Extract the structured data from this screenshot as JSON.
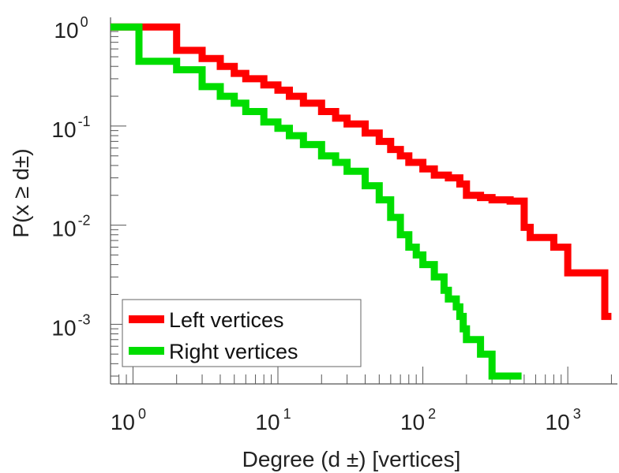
{
  "chart_data": {
    "type": "line",
    "xscale": "log",
    "yscale": "log",
    "xlim": [
      0.7,
      2200
    ],
    "ylim": [
      0.00025,
      1.25
    ],
    "grid": false,
    "legend_position": "bottom-left",
    "xlabel": "Degree (d ±) [vertices]",
    "ylabel": "P(x ≥ d±)",
    "x_ticks": [
      {
        "base": "10",
        "exp": "0",
        "value": 1
      },
      {
        "base": "10",
        "exp": "1",
        "value": 10
      },
      {
        "base": "10",
        "exp": "2",
        "value": 100
      },
      {
        "base": "10",
        "exp": "3",
        "value": 1000
      }
    ],
    "y_ticks": [
      {
        "base": "10",
        "exp": "0",
        "value": 1
      },
      {
        "base": "10",
        "exp": "-1",
        "value": 0.1
      },
      {
        "base": "10",
        "exp": "-2",
        "value": 0.01
      },
      {
        "base": "10",
        "exp": "-3",
        "value": 0.001
      }
    ],
    "series": [
      {
        "name": "Left vertices",
        "color": "#ff0000",
        "x": [
          1,
          2,
          3,
          4,
          5,
          6,
          8,
          10,
          12,
          15,
          20,
          25,
          30,
          40,
          50,
          60,
          70,
          80,
          100,
          120,
          150,
          180,
          200,
          250,
          300,
          400,
          500,
          550,
          800,
          1000,
          1200,
          1500,
          1800,
          2000
        ],
        "y": [
          1,
          0.58,
          0.48,
          0.4,
          0.34,
          0.3,
          0.26,
          0.23,
          0.2,
          0.17,
          0.14,
          0.12,
          0.105,
          0.085,
          0.07,
          0.058,
          0.05,
          0.043,
          0.037,
          0.032,
          0.03,
          0.026,
          0.02,
          0.019,
          0.018,
          0.0175,
          0.0095,
          0.0075,
          0.006,
          0.0033,
          0.0033,
          0.0033,
          0.0012,
          0.0012
        ]
      },
      {
        "name": "Right vertices",
        "color": "#00dd00",
        "x": [
          1,
          1.1,
          2,
          3,
          4,
          5,
          6,
          8,
          10,
          12,
          15,
          20,
          25,
          30,
          40,
          50,
          60,
          70,
          80,
          90,
          100,
          120,
          140,
          150,
          170,
          180,
          190,
          200,
          250,
          300,
          480
        ],
        "y": [
          1,
          0.45,
          0.37,
          0.25,
          0.2,
          0.17,
          0.14,
          0.11,
          0.095,
          0.08,
          0.065,
          0.05,
          0.043,
          0.035,
          0.025,
          0.018,
          0.012,
          0.008,
          0.006,
          0.005,
          0.004,
          0.003,
          0.0022,
          0.0018,
          0.0015,
          0.0012,
          0.0009,
          0.0007,
          0.0005,
          0.0003,
          0.0003
        ]
      }
    ]
  }
}
